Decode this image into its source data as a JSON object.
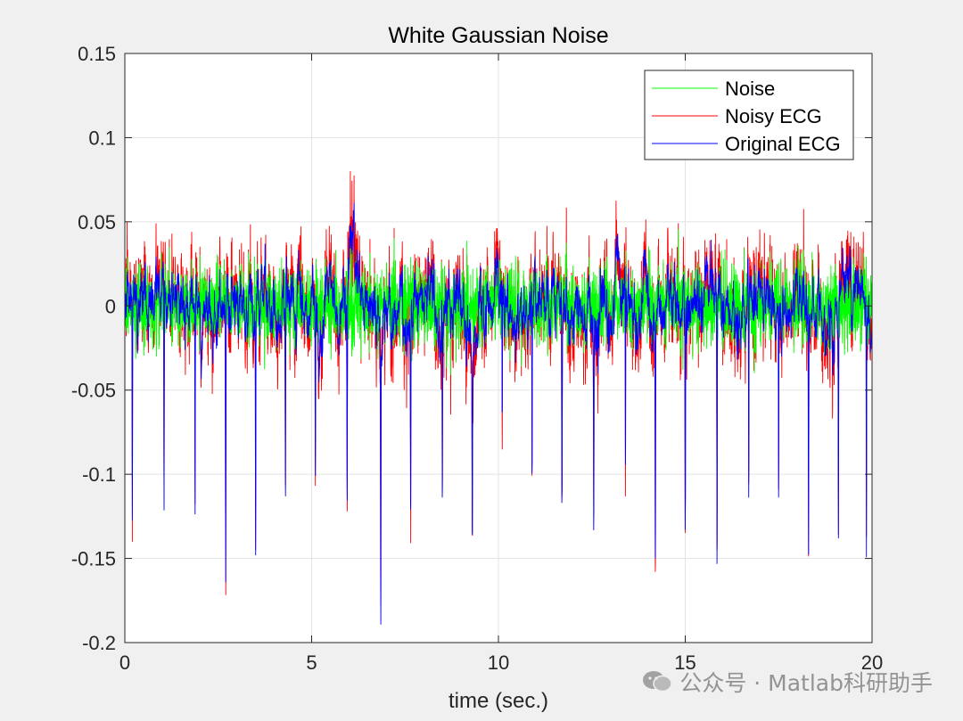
{
  "chart_data": {
    "type": "line",
    "title": "White Gaussian Noise",
    "xlabel": "time (sec.)",
    "ylabel": "",
    "xlim": [
      0,
      20
    ],
    "ylim": [
      -0.2,
      0.15
    ],
    "xticks": [
      0,
      5,
      10,
      15,
      20
    ],
    "xtick_labels": [
      "0",
      "5",
      "10",
      "15",
      "20"
    ],
    "yticks": [
      -0.2,
      -0.15,
      -0.1,
      -0.05,
      0,
      0.05,
      0.1,
      0.15
    ],
    "ytick_labels": [
      "-0.2",
      "-0.15",
      "-0.1",
      "-0.05",
      "0",
      "0.05",
      "0.1",
      "0.15"
    ],
    "grid": true,
    "legend_position": "top-right",
    "series": [
      {
        "name": "Noise",
        "color": "#00ff00",
        "noise_std": 0.012
      },
      {
        "name": "Noisy ECG",
        "color": "#ff0000"
      },
      {
        "name": "Original ECG",
        "color": "#0000ff"
      }
    ],
    "beat_times": [
      0.2,
      1.05,
      1.88,
      2.7,
      3.5,
      4.3,
      5.1,
      5.95,
      6.85,
      7.65,
      8.5,
      9.3,
      10.1,
      10.9,
      11.7,
      12.55,
      13.4,
      14.2,
      15.0,
      15.85,
      16.7,
      17.5,
      18.3,
      19.1,
      19.85
    ],
    "beat_minima": [
      -0.141,
      -0.132,
      -0.135,
      -0.146,
      -0.139,
      -0.12,
      -0.103,
      -0.127,
      -0.162,
      -0.119,
      -0.123,
      -0.108,
      -0.09,
      -0.12,
      -0.125,
      -0.13,
      -0.123,
      -0.14,
      -0.135,
      -0.168,
      -0.132,
      -0.12,
      -0.132,
      -0.14,
      -0.143
    ],
    "event_peak": {
      "time": 6.1,
      "value": 0.073
    }
  },
  "watermark": {
    "text": "公众号 · Matlab科研助手",
    "icon": "wechat-icon"
  }
}
